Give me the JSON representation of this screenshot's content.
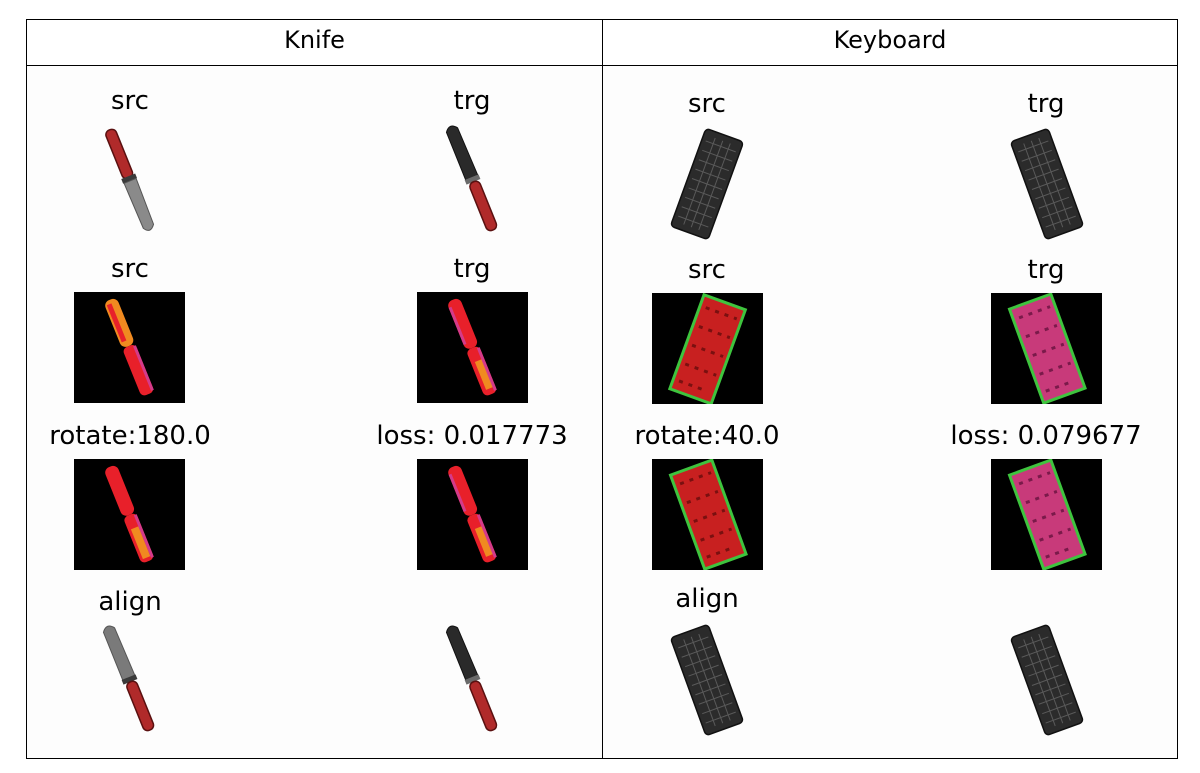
{
  "columns": [
    {
      "header": "Knife",
      "rows": [
        {
          "left_label": "src",
          "right_label": "trg"
        },
        {
          "left_label": "src",
          "right_label": "trg"
        },
        {
          "left_label": "rotate:180.0",
          "right_label": "loss: 0.017773"
        },
        {
          "left_label": "align",
          "right_label": ""
        }
      ]
    },
    {
      "header": "Keyboard",
      "rows": [
        {
          "left_label": "src",
          "right_label": "trg"
        },
        {
          "left_label": "src",
          "right_label": "trg"
        },
        {
          "left_label": "rotate:40.0",
          "right_label": "loss: 0.079677"
        },
        {
          "left_label": "align",
          "right_label": ""
        }
      ]
    }
  ],
  "colors": {
    "border": "#000000",
    "knife_handle": "#b02a2a",
    "knife_blade": "#7a7a7a",
    "keyboard_body": "#2b2b2b",
    "mask_red": "#e8202a",
    "mask_orange": "#f08a20",
    "mask_magenta": "#d43a8a",
    "mask_green_outline": "#3ec43e"
  }
}
